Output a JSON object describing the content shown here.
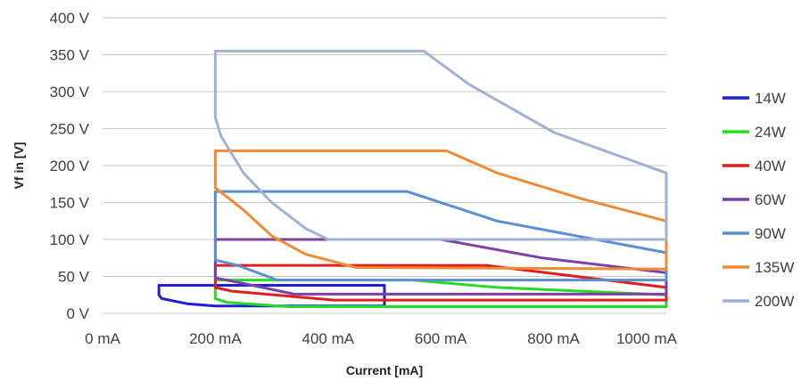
{
  "chart_data": {
    "type": "line",
    "xlabel": "Current [mA]",
    "ylabel": "Vf in [V]",
    "xlim": [
      0,
      1050
    ],
    "ylim": [
      0,
      400
    ],
    "x_ticks": [
      {
        "value": 0,
        "label": "0 mA"
      },
      {
        "value": 200,
        "label": "200 mA"
      },
      {
        "value": 400,
        "label": "400 mA"
      },
      {
        "value": 600,
        "label": "600 mA"
      },
      {
        "value": 800,
        "label": "800 mA"
      },
      {
        "value": 1000,
        "label": "1000 mA"
      }
    ],
    "y_ticks": [
      {
        "value": 0,
        "label": "0 V"
      },
      {
        "value": 50,
        "label": "50 V"
      },
      {
        "value": 100,
        "label": "100 V"
      },
      {
        "value": 150,
        "label": "150 V"
      },
      {
        "value": 200,
        "label": "200 V"
      },
      {
        "value": 250,
        "label": "250 V"
      },
      {
        "value": 300,
        "label": "300 V"
      },
      {
        "value": 350,
        "label": "350 V"
      },
      {
        "value": 400,
        "label": "400 V"
      }
    ],
    "grid": "horizontal",
    "legend_position": "right",
    "series": [
      {
        "name": "14W",
        "color": "#1f1fd6",
        "points": [
          [
            100,
            38
          ],
          [
            500,
            38
          ],
          [
            500,
            35
          ],
          [
            500,
            28
          ],
          [
            500,
            10
          ],
          [
            200,
            10
          ],
          [
            150,
            13
          ],
          [
            105,
            20
          ],
          [
            100,
            25
          ],
          [
            100,
            38
          ]
        ]
      },
      {
        "name": "24W",
        "color": "#22dd22",
        "points": [
          [
            200,
            45
          ],
          [
            550,
            45
          ],
          [
            700,
            35
          ],
          [
            1050,
            25
          ],
          [
            1050,
            9
          ],
          [
            330,
            9
          ],
          [
            220,
            15
          ],
          [
            200,
            20
          ],
          [
            200,
            45
          ]
        ]
      },
      {
        "name": "40W",
        "color": "#e01e1e",
        "points": [
          [
            200,
            65
          ],
          [
            680,
            65
          ],
          [
            840,
            50
          ],
          [
            1050,
            35
          ],
          [
            1050,
            18
          ],
          [
            410,
            18
          ],
          [
            230,
            30
          ],
          [
            200,
            35
          ],
          [
            200,
            65
          ]
        ]
      },
      {
        "name": "60W",
        "color": "#7f3fa8",
        "points": [
          [
            200,
            100
          ],
          [
            600,
            100
          ],
          [
            780,
            75
          ],
          [
            1050,
            55
          ],
          [
            1050,
            26
          ],
          [
            340,
            26
          ],
          [
            240,
            42
          ],
          [
            200,
            48
          ],
          [
            200,
            100
          ]
        ]
      },
      {
        "name": "90W",
        "color": "#5b8fd4",
        "points": [
          [
            200,
            165
          ],
          [
            540,
            165
          ],
          [
            700,
            125
          ],
          [
            1050,
            82
          ],
          [
            1050,
            45
          ],
          [
            310,
            45
          ],
          [
            240,
            65
          ],
          [
            200,
            72
          ],
          [
            200,
            165
          ]
        ]
      },
      {
        "name": "135W",
        "color": "#f28a35",
        "points": [
          [
            200,
            220
          ],
          [
            610,
            220
          ],
          [
            700,
            190
          ],
          [
            850,
            155
          ],
          [
            1050,
            125
          ],
          [
            1050,
            60
          ],
          [
            450,
            62
          ],
          [
            360,
            80
          ],
          [
            300,
            105
          ],
          [
            250,
            140
          ],
          [
            200,
            170
          ],
          [
            200,
            220
          ]
        ]
      },
      {
        "name": "200W",
        "color": "#a0b2d3",
        "points": [
          [
            200,
            355
          ],
          [
            570,
            355
          ],
          [
            650,
            310
          ],
          [
            800,
            245
          ],
          [
            1050,
            190
          ],
          [
            1050,
            100
          ],
          [
            400,
            100
          ],
          [
            360,
            115
          ],
          [
            300,
            150
          ],
          [
            250,
            190
          ],
          [
            210,
            240
          ],
          [
            200,
            265
          ],
          [
            200,
            355
          ]
        ]
      }
    ]
  }
}
